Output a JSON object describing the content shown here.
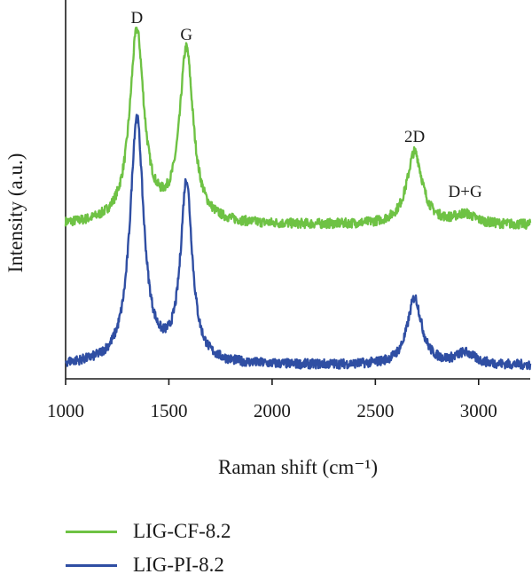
{
  "chart_data": {
    "type": "line",
    "xlabel": "Raman shift (cm⁻¹)",
    "ylabel": "Intensity (a.u.)",
    "xlim": [
      1000,
      3250
    ],
    "xticks": [
      1000,
      1500,
      2000,
      2500,
      3000
    ],
    "y_ticks_shown": false,
    "legend_position": "bottom-left, below plot",
    "peak_annotations": [
      {
        "label": "D",
        "x": 1345
      },
      {
        "label": "G",
        "x": 1585
      },
      {
        "label": "2D",
        "x": 2690
      },
      {
        "label": "D+G",
        "x": 2935
      }
    ],
    "series": [
      {
        "name": "LIG-CF-8.2",
        "color": "#6ec244",
        "baseline": 0.38,
        "peaks": [
          {
            "center": 1345,
            "height": 1.0,
            "width": 42
          },
          {
            "center": 1585,
            "height": 0.9,
            "width": 40
          },
          {
            "center": 2690,
            "height": 0.38,
            "width": 45
          },
          {
            "center": 2935,
            "height": 0.05,
            "width": 60
          }
        ]
      },
      {
        "name": "LIG-PI-8.2",
        "color": "#2f4ea3",
        "baseline": 0.0,
        "peaks": [
          {
            "center": 1345,
            "height": 1.28,
            "width": 40
          },
          {
            "center": 1585,
            "height": 0.94,
            "width": 34
          },
          {
            "center": 2690,
            "height": 0.35,
            "width": 42
          },
          {
            "center": 2935,
            "height": 0.06,
            "width": 55
          }
        ]
      }
    ]
  }
}
